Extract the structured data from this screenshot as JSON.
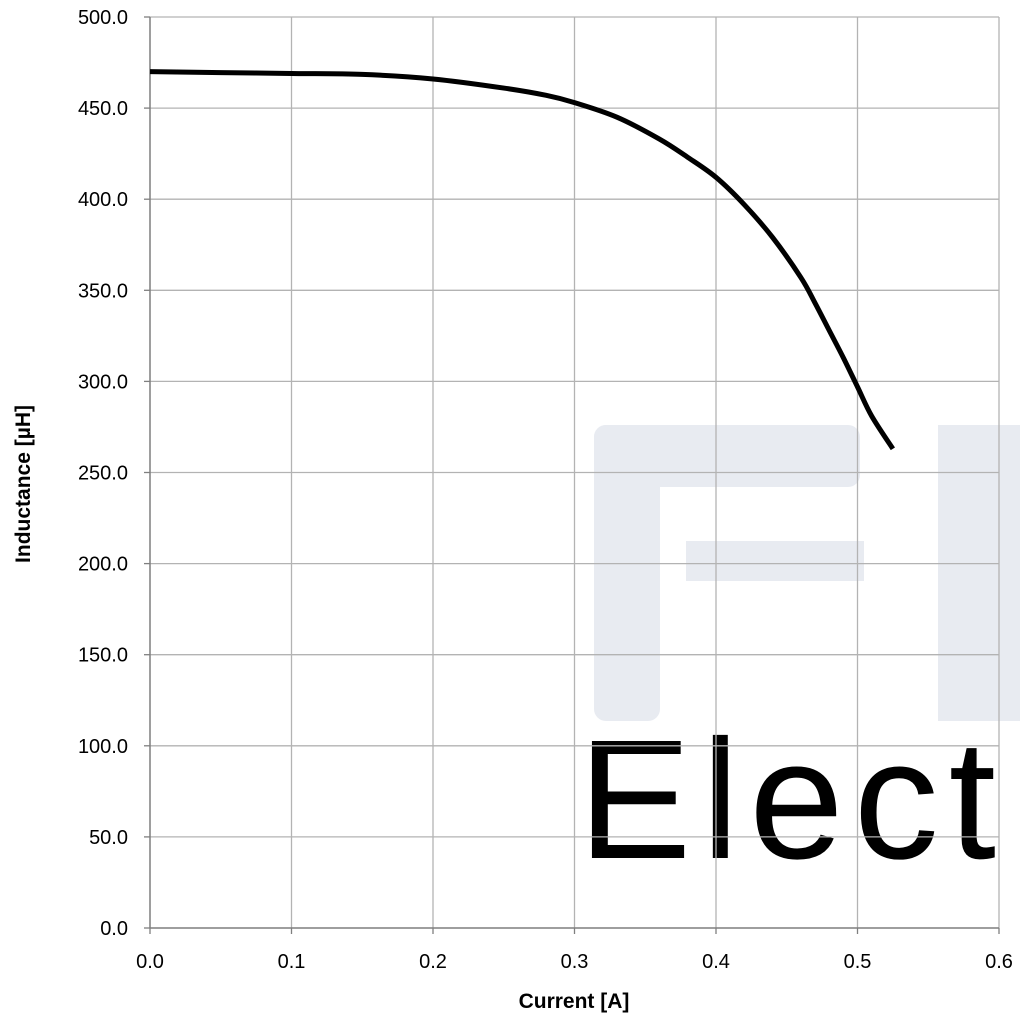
{
  "chart_data": {
    "type": "line",
    "title": "",
    "xlabel": "Current [A]",
    "ylabel": "Inductance [µH]",
    "xlim": [
      0.0,
      0.6
    ],
    "ylim": [
      0.0,
      500.0
    ],
    "x_ticks": [
      "0.0",
      "0.1",
      "0.2",
      "0.3",
      "0.4",
      "0.5",
      "0.6"
    ],
    "y_ticks": [
      "0.0",
      "50.0",
      "100.0",
      "150.0",
      "200.0",
      "250.0",
      "300.0",
      "350.0",
      "400.0",
      "450.0",
      "500.0"
    ],
    "grid": true,
    "legend": "none",
    "series": [
      {
        "color": "#000000",
        "x": [
          0.0,
          0.05,
          0.1,
          0.15,
          0.2,
          0.25,
          0.28,
          0.3,
          0.33,
          0.36,
          0.38,
          0.4,
          0.42,
          0.44,
          0.46,
          0.47,
          0.48,
          0.49,
          0.5,
          0.51,
          0.525
        ],
        "y": [
          470,
          469.5,
          469,
          468.5,
          466,
          461,
          457,
          453,
          445,
          433,
          423,
          412,
          397,
          379,
          357,
          343,
          328,
          313,
          297,
          281,
          263
        ]
      }
    ]
  },
  "watermark": {
    "text": "Elect",
    "color": "#e8ebf1"
  }
}
